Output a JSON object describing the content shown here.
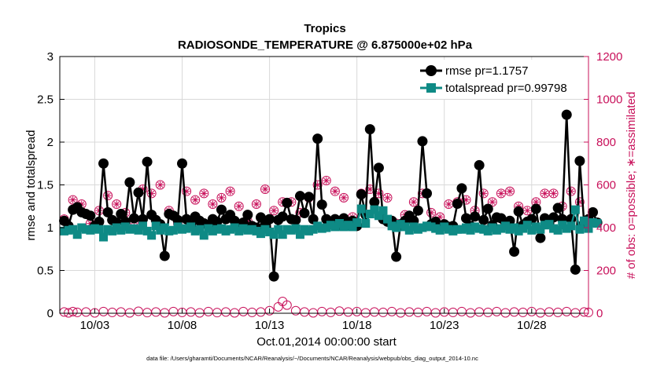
{
  "chart_data": {
    "type": "line",
    "title": "Tropics",
    "subtitle": "RADIOSONDE_TEMPERATURE @ 6.875000e+02 hPa",
    "xlabel": "Oct.01,2014 00:00:00 start",
    "ylabel": "rmse and totalspread",
    "ylabel_right": "# of obs: o=possible; ∗=assimilated",
    "footnote": "data file: /Users/gharamti/Documents/NCAR/Reanalysis/~/Documents/NCAR/Reanalysis/webpub/obs_diag_output_2014-10.nc",
    "xlim": [
      1,
      31.25
    ],
    "ylim": [
      0,
      3
    ],
    "ylim_right": [
      0,
      1200
    ],
    "x_ticks": [
      3,
      8,
      13,
      18,
      23,
      28
    ],
    "x_tick_labels": [
      "10/03",
      "10/08",
      "10/13",
      "10/18",
      "10/23",
      "10/28"
    ],
    "y_ticks": [
      0,
      0.5,
      1,
      1.5,
      2,
      2.5,
      3
    ],
    "y_tick_labels": [
      "0",
      "0.5",
      "1",
      "1.5",
      "2",
      "2.5",
      "3"
    ],
    "y_ticks_right": [
      0,
      200,
      400,
      600,
      800,
      1000,
      1200
    ],
    "y_tick_labels_right": [
      "0",
      "200",
      "400",
      "600",
      "800",
      "1000",
      "1200"
    ],
    "x_start": 1.25,
    "x_step": 0.25,
    "series": [
      {
        "name": "rmse",
        "legend": "rmse pr=1.1757",
        "color": "#000000",
        "values": [
          1.08,
          1.02,
          1.21,
          1.24,
          1.18,
          1.16,
          1.14,
          1.02,
          1.07,
          1.75,
          1.18,
          1.09,
          1.06,
          1.16,
          1.07,
          1.53,
          1.11,
          1.41,
          1.1,
          1.77,
          1.15,
          1.09,
          1.04,
          0.67,
          1.16,
          1.14,
          1.09,
          1.75,
          1.1,
          1.03,
          1.13,
          1.08,
          1.05,
          1.02,
          1.1,
          1.07,
          1.21,
          1.1,
          1.15,
          1.08,
          1.01,
          1.06,
          1.15,
          1.02,
          1.0,
          1.12,
          1.05,
          1.1,
          0.43,
          1.09,
          1.13,
          1.29,
          1.1,
          1.09,
          1.37,
          1.17,
          1.36,
          1.1,
          2.04,
          1.27,
          1.1,
          1.07,
          1.1,
          1.03,
          1.11,
          1.03,
          1.08,
          1.02,
          1.39,
          1.15,
          2.15,
          1.3,
          1.7,
          1.1,
          1.07,
          1.08,
          0.66,
          1.04,
          1.08,
          1.14,
          1.08,
          1.2,
          2.01,
          1.4,
          1.04,
          1.07,
          1.0,
          1.04,
          1.01,
          1.02,
          1.28,
          1.46,
          1.11,
          1.02,
          1.13,
          1.73,
          1.09,
          1.22,
          1.03,
          1.12,
          1.11,
          1.06,
          1.08,
          0.72,
          1.19,
          1.03,
          1.07,
          1.1,
          1.22,
          0.88,
          1.11,
          1.05,
          1.12,
          1.23,
          1.1,
          2.32,
          1.1,
          0.51,
          1.78,
          1.05,
          1.1,
          1.18,
          1.06
        ],
        "marker": "circle"
      },
      {
        "name": "totalspread",
        "legend": "totalspread pr=0.99798",
        "color": "#0e8a85",
        "values": [
          0.96,
          0.97,
          0.98,
          0.92,
          1.0,
          0.98,
          0.97,
          0.99,
          0.98,
          0.89,
          0.98,
          0.96,
          1.0,
          0.97,
          1.01,
          0.98,
          0.99,
          0.97,
          1.02,
          0.96,
          0.91,
          1.02,
          0.97,
          1.0,
          0.96,
          0.97,
          1.01,
          0.98,
          0.99,
          1.01,
          0.96,
          0.98,
          0.91,
          0.99,
          0.96,
          0.98,
          0.99,
          0.96,
          0.98,
          1.0,
          0.96,
          0.99,
          0.97,
          0.98,
          0.96,
          0.93,
          0.98,
          0.95,
          0.92,
          0.98,
          0.92,
          0.98,
          0.97,
          0.99,
          0.92,
          0.98,
          0.96,
          0.98,
          1.02,
          0.99,
          1.0,
          1.03,
          1.01,
          1.05,
          1.01,
          1.03,
          1.01,
          1.06,
          1.22,
          1.05,
          1.16,
          1.21,
          1.14,
          1.2,
          1.1,
          1.02,
          1.0,
          1.04,
          1.01,
          0.97,
          1.01,
          0.98,
          1.0,
          1.02,
          1.01,
          0.99,
          0.97,
          1.01,
          0.98,
          0.96,
          0.98,
          0.98,
          1.0,
          0.97,
          1.01,
          0.99,
          0.98,
          0.96,
          1.0,
          0.97,
          0.99,
          1.02,
          0.98,
          1.0,
          0.96,
          0.99,
          1.03,
          0.97,
          1.01,
          0.98,
          1.03,
          1.04,
          0.99,
          0.97,
          1.03,
          0.99,
          1.02,
          1.21,
          0.98,
          1.08,
          0.99,
          1.06,
          1.05
        ],
        "marker": "square"
      }
    ],
    "obs_possible": [
      {
        "x": 1.25,
        "y": 6
      },
      {
        "x": 1.5,
        "y": 2
      },
      {
        "x": 1.75,
        "y": 8
      },
      {
        "x": 2,
        "y": 4
      },
      {
        "x": 2.5,
        "y": 6
      },
      {
        "x": 3,
        "y": 2
      },
      {
        "x": 3.5,
        "y": 8
      },
      {
        "x": 4,
        "y": 4
      },
      {
        "x": 4.5,
        "y": 6
      },
      {
        "x": 5,
        "y": 2
      },
      {
        "x": 5.5,
        "y": 9
      },
      {
        "x": 6,
        "y": 3
      },
      {
        "x": 6.5,
        "y": 6
      },
      {
        "x": 7,
        "y": 2
      },
      {
        "x": 7.5,
        "y": 8
      },
      {
        "x": 8,
        "y": 4
      },
      {
        "x": 8.5,
        "y": 6
      },
      {
        "x": 9,
        "y": 2
      },
      {
        "x": 9.5,
        "y": 8
      },
      {
        "x": 10,
        "y": 3
      },
      {
        "x": 10.5,
        "y": 6
      },
      {
        "x": 11,
        "y": 2
      },
      {
        "x": 11.5,
        "y": 8
      },
      {
        "x": 12,
        "y": 4
      },
      {
        "x": 12.5,
        "y": 6
      },
      {
        "x": 13,
        "y": 12
      },
      {
        "x": 13.5,
        "y": 30
      },
      {
        "x": 13.75,
        "y": 55
      },
      {
        "x": 14,
        "y": 38
      },
      {
        "x": 14.5,
        "y": 12
      },
      {
        "x": 15,
        "y": 6
      },
      {
        "x": 15.5,
        "y": 2
      },
      {
        "x": 16,
        "y": 8
      },
      {
        "x": 16.5,
        "y": 4
      },
      {
        "x": 17,
        "y": 10
      },
      {
        "x": 17.5,
        "y": 6
      },
      {
        "x": 18,
        "y": 8
      },
      {
        "x": 18.5,
        "y": 2
      },
      {
        "x": 19,
        "y": 6
      },
      {
        "x": 19.5,
        "y": 4
      },
      {
        "x": 20,
        "y": 8
      },
      {
        "x": 20.5,
        "y": 2
      },
      {
        "x": 21,
        "y": 6
      },
      {
        "x": 21.5,
        "y": 4
      },
      {
        "x": 22,
        "y": 8
      },
      {
        "x": 22.5,
        "y": 2
      },
      {
        "x": 23,
        "y": 6
      },
      {
        "x": 23.5,
        "y": 4
      },
      {
        "x": 24,
        "y": 8
      },
      {
        "x": 24.5,
        "y": 2
      },
      {
        "x": 25,
        "y": 6
      },
      {
        "x": 25.5,
        "y": 4
      },
      {
        "x": 26,
        "y": 8
      },
      {
        "x": 26.5,
        "y": 2
      },
      {
        "x": 27,
        "y": 6
      },
      {
        "x": 27.5,
        "y": 4
      },
      {
        "x": 28,
        "y": 8
      },
      {
        "x": 28.5,
        "y": 2
      },
      {
        "x": 29,
        "y": 6
      },
      {
        "x": 29.5,
        "y": 4
      },
      {
        "x": 30,
        "y": 8
      },
      {
        "x": 30.5,
        "y": 2
      },
      {
        "x": 31,
        "y": 6
      },
      {
        "x": 31.25,
        "y": 4
      }
    ],
    "obs_assimilated": [
      {
        "x": 1.25,
        "y": 440
      },
      {
        "x": 1.75,
        "y": 530
      },
      {
        "x": 2.25,
        "y": 510
      },
      {
        "x": 2.75,
        "y": 420
      },
      {
        "x": 3.25,
        "y": 480
      },
      {
        "x": 3.75,
        "y": 550
      },
      {
        "x": 4.25,
        "y": 510
      },
      {
        "x": 4.75,
        "y": 470
      },
      {
        "x": 5.25,
        "y": 430
      },
      {
        "x": 5.75,
        "y": 580
      },
      {
        "x": 6.25,
        "y": 560
      },
      {
        "x": 6.75,
        "y": 600
      },
      {
        "x": 7.25,
        "y": 480
      },
      {
        "x": 7.75,
        "y": 420
      },
      {
        "x": 8.25,
        "y": 570
      },
      {
        "x": 8.75,
        "y": 530
      },
      {
        "x": 9.25,
        "y": 560
      },
      {
        "x": 9.75,
        "y": 510
      },
      {
        "x": 10.25,
        "y": 540
      },
      {
        "x": 10.75,
        "y": 570
      },
      {
        "x": 11.25,
        "y": 500
      },
      {
        "x": 11.75,
        "y": 430
      },
      {
        "x": 12.25,
        "y": 510
      },
      {
        "x": 12.75,
        "y": 580
      },
      {
        "x": 13.25,
        "y": 480
      },
      {
        "x": 13.75,
        "y": 520
      },
      {
        "x": 14.25,
        "y": 520
      },
      {
        "x": 14.75,
        "y": 470
      },
      {
        "x": 15.25,
        "y": 540
      },
      {
        "x": 15.75,
        "y": 600
      },
      {
        "x": 16.25,
        "y": 620
      },
      {
        "x": 16.75,
        "y": 570
      },
      {
        "x": 17.25,
        "y": 540
      },
      {
        "x": 17.75,
        "y": 450
      },
      {
        "x": 18.25,
        "y": 560
      },
      {
        "x": 18.75,
        "y": 580
      },
      {
        "x": 19.25,
        "y": 560
      },
      {
        "x": 19.75,
        "y": 540
      },
      {
        "x": 20.25,
        "y": 420
      },
      {
        "x": 20.75,
        "y": 460
      },
      {
        "x": 21.25,
        "y": 520
      },
      {
        "x": 21.75,
        "y": 560
      },
      {
        "x": 22.25,
        "y": 470
      },
      {
        "x": 22.75,
        "y": 450
      },
      {
        "x": 23.25,
        "y": 510
      },
      {
        "x": 23.75,
        "y": 520
      },
      {
        "x": 24.25,
        "y": 530
      },
      {
        "x": 24.75,
        "y": 480
      },
      {
        "x": 25.25,
        "y": 560
      },
      {
        "x": 25.75,
        "y": 520
      },
      {
        "x": 26.25,
        "y": 560
      },
      {
        "x": 26.75,
        "y": 570
      },
      {
        "x": 27.25,
        "y": 500
      },
      {
        "x": 27.75,
        "y": 480
      },
      {
        "x": 28.25,
        "y": 520
      },
      {
        "x": 28.75,
        "y": 560
      },
      {
        "x": 29.25,
        "y": 560
      },
      {
        "x": 29.75,
        "y": 500
      },
      {
        "x": 30.25,
        "y": 570
      },
      {
        "x": 30.75,
        "y": 520
      },
      {
        "x": 31.25,
        "y": 440
      }
    ]
  }
}
